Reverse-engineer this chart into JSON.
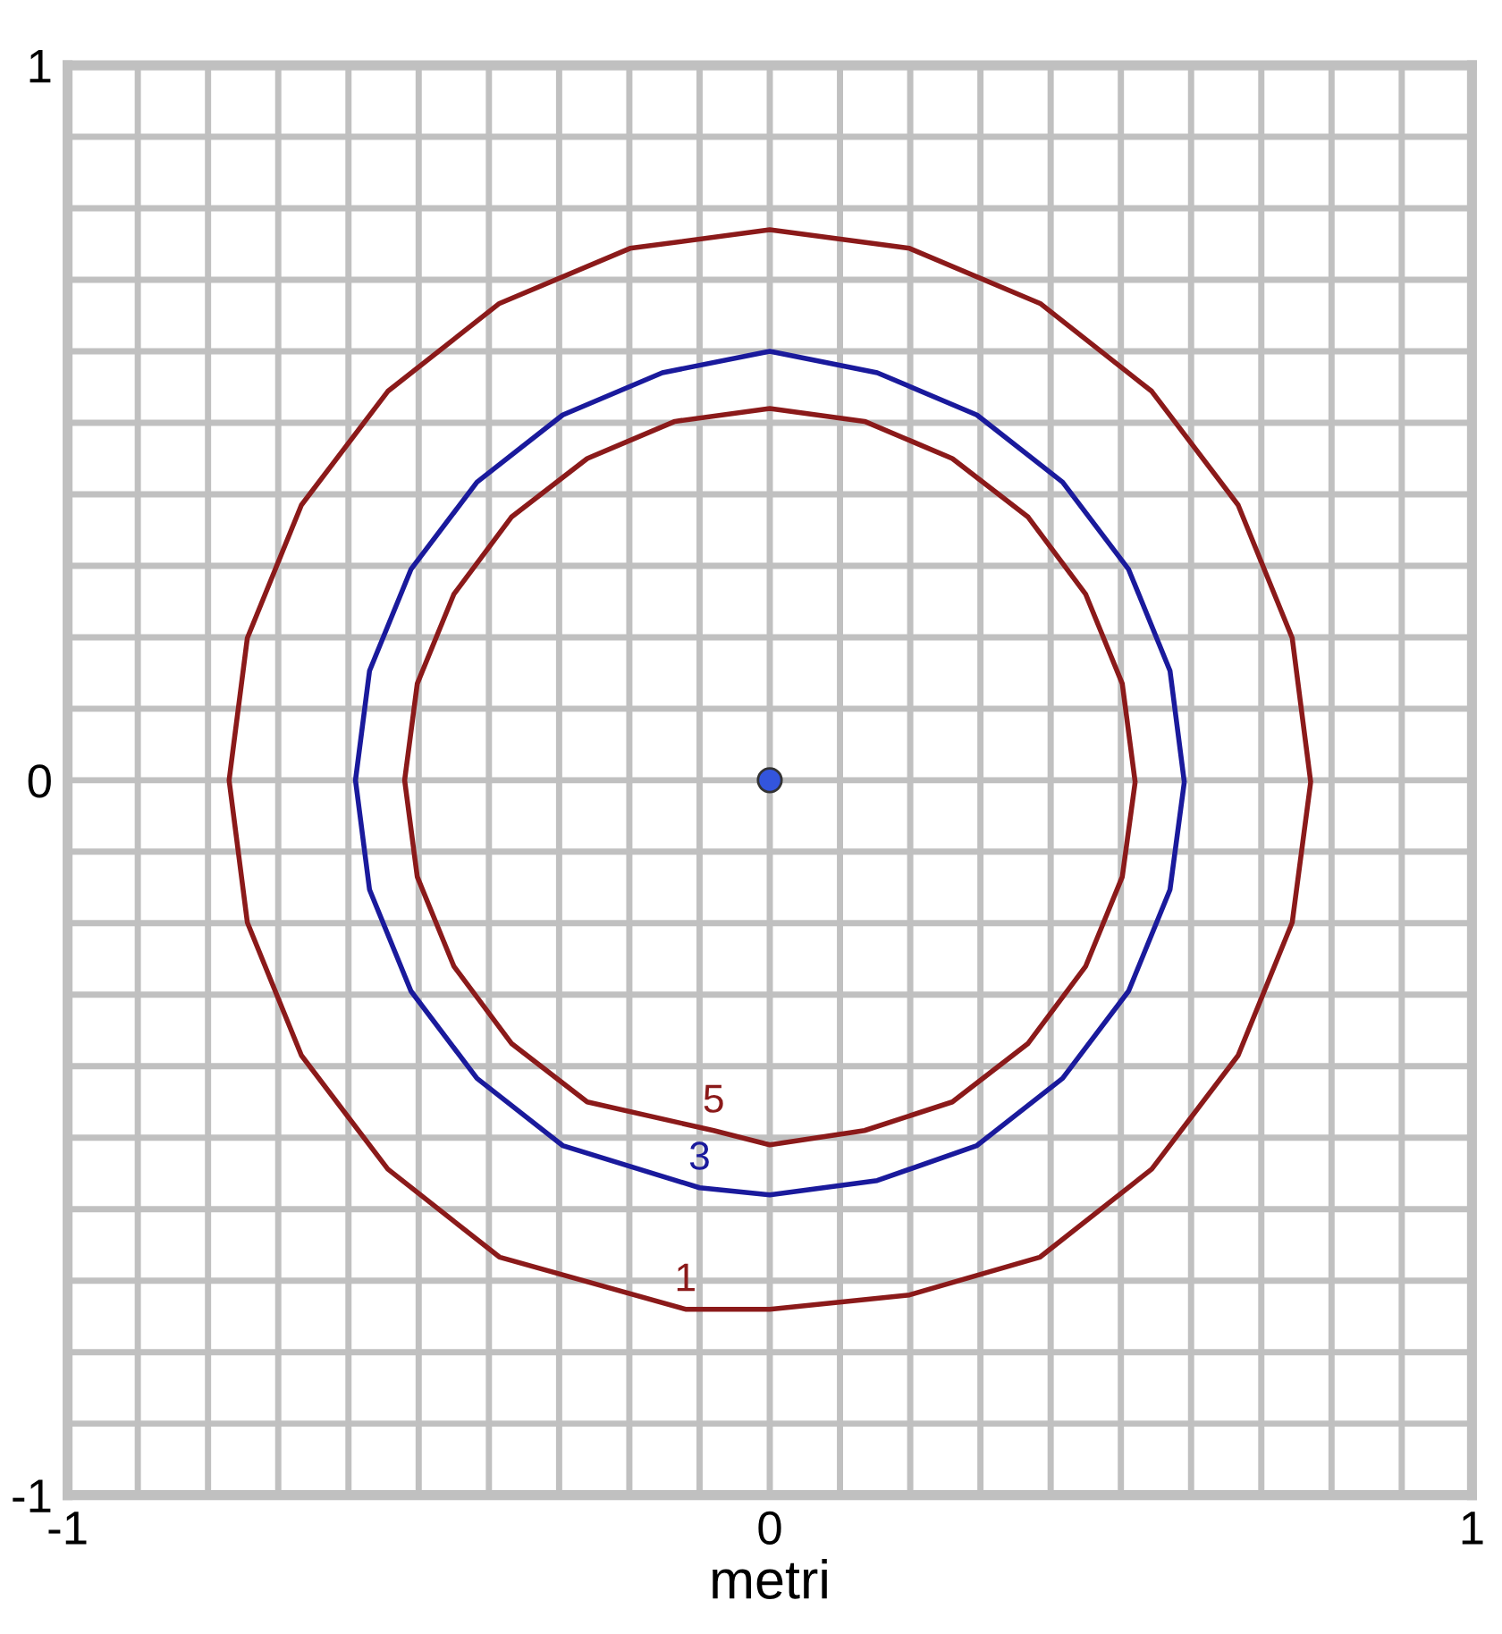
{
  "chart_data": {
    "type": "line",
    "xlabel": "metri",
    "xlim": [
      -1,
      1
    ],
    "ylim": [
      -1,
      1
    ],
    "xticks": [
      -1,
      {
        "value": -0.9,
        "label": null
      },
      {
        "value": -0.8,
        "label": null
      },
      {
        "value": -0.7,
        "label": null
      },
      {
        "value": -0.6,
        "label": null
      },
      {
        "value": -0.5,
        "label": null
      },
      {
        "value": -0.4,
        "label": null
      },
      {
        "value": -0.3,
        "label": null
      },
      {
        "value": -0.2,
        "label": null
      },
      {
        "value": -0.1,
        "label": null
      },
      0,
      {
        "value": 0.1,
        "label": null
      },
      {
        "value": 0.2,
        "label": null
      },
      {
        "value": 0.3,
        "label": null
      },
      {
        "value": 0.4,
        "label": null
      },
      {
        "value": 0.5,
        "label": null
      },
      {
        "value": 0.6,
        "label": null
      },
      {
        "value": 0.7,
        "label": null
      },
      {
        "value": 0.8,
        "label": null
      },
      {
        "value": 0.9,
        "label": null
      },
      1
    ],
    "yticks": [
      -1,
      {
        "value": -0.9,
        "label": null
      },
      {
        "value": -0.8,
        "label": null
      },
      {
        "value": -0.7,
        "label": null
      },
      {
        "value": -0.6,
        "label": null
      },
      {
        "value": -0.5,
        "label": null
      },
      {
        "value": -0.4,
        "label": null
      },
      {
        "value": -0.3,
        "label": null
      },
      {
        "value": -0.2,
        "label": null
      },
      {
        "value": -0.1,
        "label": null
      },
      0,
      {
        "value": 0.1,
        "label": null
      },
      {
        "value": 0.2,
        "label": null
      },
      {
        "value": 0.3,
        "label": null
      },
      {
        "value": 0.4,
        "label": null
      },
      {
        "value": 0.5,
        "label": null
      },
      {
        "value": 0.6,
        "label": null
      },
      {
        "value": 0.7,
        "label": null
      },
      {
        "value": 0.8,
        "label": null
      },
      {
        "value": 0.9,
        "label": null
      },
      1
    ],
    "grid": true,
    "marker": "none",
    "line_style": "solid",
    "series": [
      {
        "name": "1",
        "color": "#8b1a1a",
        "x": [
          0.77,
          0.744,
          0.667,
          0.544,
          0.385,
          0.199,
          0,
          -0.199,
          -0.385,
          -0.544,
          -0.667,
          -0.744,
          -0.77,
          -0.744,
          -0.667,
          -0.544,
          -0.385,
          -0.12,
          0,
          0.199,
          0.385,
          0.544,
          0.667,
          0.744,
          0.77
        ],
        "values": [
          0,
          0.199,
          0.385,
          0.544,
          0.667,
          0.744,
          0.77,
          0.744,
          0.667,
          0.544,
          0.385,
          0.199,
          0,
          -0.199,
          -0.385,
          -0.544,
          -0.667,
          -0.74,
          -0.74,
          -0.72,
          -0.667,
          -0.544,
          -0.385,
          -0.199,
          -0.005
        ]
      },
      {
        "name": "3",
        "color": "#1a1a9c",
        "x": [
          0.59,
          0.57,
          0.511,
          0.417,
          0.295,
          0.153,
          0,
          -0.153,
          -0.295,
          -0.417,
          -0.511,
          -0.57,
          -0.59,
          -0.57,
          -0.511,
          -0.417,
          -0.295,
          -0.1,
          0,
          0.153,
          0.295,
          0.417,
          0.511,
          0.57,
          0.59
        ],
        "values": [
          0,
          0.153,
          0.295,
          0.417,
          0.511,
          0.57,
          0.6,
          0.57,
          0.511,
          0.417,
          0.295,
          0.153,
          0,
          -0.153,
          -0.295,
          -0.417,
          -0.511,
          -0.57,
          -0.58,
          -0.56,
          -0.511,
          -0.417,
          -0.295,
          -0.153,
          -0.005
        ]
      },
      {
        "name": "5",
        "color": "#8b1a1a",
        "x": [
          0.52,
          0.502,
          0.45,
          0.368,
          0.26,
          0.135,
          0,
          -0.135,
          -0.26,
          -0.368,
          -0.45,
          -0.502,
          -0.52,
          -0.502,
          -0.45,
          -0.368,
          -0.26,
          -0.08,
          0,
          0.135,
          0.26,
          0.368,
          0.45,
          0.502,
          0.52
        ],
        "values": [
          0,
          0.135,
          0.26,
          0.368,
          0.45,
          0.502,
          0.52,
          0.502,
          0.45,
          0.368,
          0.26,
          0.135,
          0,
          -0.135,
          -0.26,
          -0.368,
          -0.45,
          -0.49,
          -0.51,
          -0.49,
          -0.45,
          -0.368,
          -0.26,
          -0.135,
          -0.005
        ]
      },
      {
        "type": "scatter",
        "color": "#3355dd",
        "x": [
          0
        ],
        "values": [
          0
        ],
        "marker": "circle"
      }
    ]
  }
}
